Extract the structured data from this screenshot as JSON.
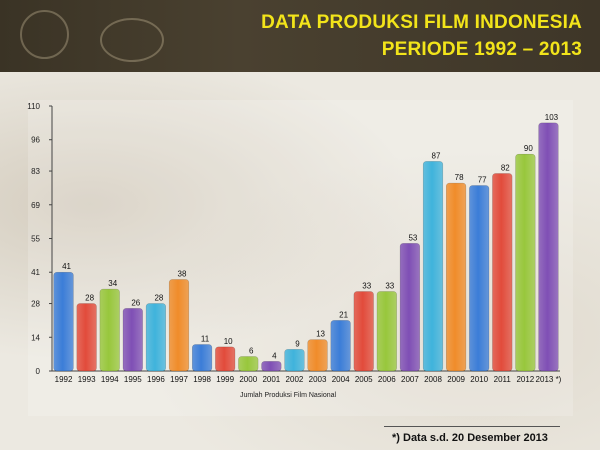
{
  "header": {
    "title_line1": "DATA PRODUKSI FILM INDONESIA",
    "title_line2": "PERIODE  1992 – 2013"
  },
  "chart_data": {
    "type": "bar",
    "categories": [
      "1992",
      "1993",
      "1994",
      "1995",
      "1996",
      "1997",
      "1998",
      "1999",
      "2000",
      "2001",
      "2002",
      "2003",
      "2004",
      "2005",
      "2006",
      "2007",
      "2008",
      "2009",
      "2010",
      "2011",
      "2012",
      "2013 *)"
    ],
    "values": [
      41,
      28,
      34,
      26,
      28,
      38,
      11,
      10,
      6,
      4,
      9,
      13,
      21,
      33,
      33,
      53,
      87,
      78,
      77,
      82,
      90,
      103
    ],
    "bar_colors": [
      "#3b7dd8",
      "#e24b3b",
      "#98c73c",
      "#7f4fb5",
      "#3fb3dc",
      "#f08c2a",
      "#3b7dd8",
      "#e24b3b",
      "#98c73c",
      "#7f4fb5",
      "#3fb3dc",
      "#f08c2a",
      "#3b7dd8",
      "#e24b3b",
      "#98c73c",
      "#7f4fb5",
      "#3fb3dc",
      "#f08c2a",
      "#3b7dd8",
      "#e24b3b",
      "#98c73c",
      "#7f4fb5"
    ],
    "yticks": [
      0,
      14,
      28,
      41,
      55,
      69,
      83,
      96,
      110
    ],
    "ylim": [
      0,
      110
    ],
    "xlabel": "Jumlah Produksi Film Nasional",
    "grid": false,
    "legend": "none"
  },
  "footnote": "*) Data s.d. 20 Desember 2013"
}
